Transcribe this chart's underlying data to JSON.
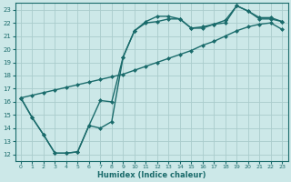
{
  "xlabel": "Humidex (Indice chaleur)",
  "bg_color": "#cce8e8",
  "grid_color": "#aacccc",
  "line_color": "#1a6b6b",
  "markersize": 2.5,
  "linewidth": 1.0,
  "xlim": [
    -0.5,
    23.5
  ],
  "ylim": [
    11.5,
    23.5
  ],
  "xticks": [
    0,
    1,
    2,
    3,
    4,
    5,
    6,
    7,
    8,
    9,
    10,
    11,
    12,
    13,
    14,
    15,
    16,
    17,
    18,
    19,
    20,
    21,
    22,
    23
  ],
  "yticks": [
    12,
    13,
    14,
    15,
    16,
    17,
    18,
    19,
    20,
    21,
    22,
    23
  ],
  "line1_x": [
    0,
    1,
    2,
    3,
    4,
    5,
    6,
    7,
    8,
    9,
    10,
    11,
    12,
    13,
    14,
    15,
    16,
    17,
    18,
    19,
    20,
    21,
    22,
    23
  ],
  "line1_y": [
    16.3,
    14.8,
    13.5,
    12.1,
    12.1,
    12.2,
    14.2,
    14.0,
    14.5,
    19.4,
    21.4,
    22.1,
    22.5,
    22.5,
    22.3,
    21.6,
    21.6,
    21.9,
    22.2,
    23.3,
    22.9,
    22.4,
    22.4,
    22.1
  ],
  "line2_x": [
    0,
    1,
    2,
    3,
    4,
    5,
    6,
    7,
    8,
    9,
    10,
    11,
    12,
    13,
    14,
    15,
    16,
    17,
    18,
    19,
    20,
    21,
    22,
    23
  ],
  "line2_y": [
    16.3,
    14.8,
    13.5,
    12.1,
    12.1,
    12.2,
    14.2,
    16.1,
    16.0,
    19.4,
    21.4,
    22.0,
    22.1,
    22.3,
    22.3,
    21.6,
    21.7,
    21.9,
    22.0,
    23.3,
    22.9,
    22.3,
    22.3,
    22.1
  ],
  "line3_x": [
    0,
    1,
    2,
    3,
    4,
    5,
    6,
    7,
    8,
    9,
    10,
    11,
    12,
    13,
    14,
    15,
    16,
    17,
    18,
    19,
    20,
    21,
    22,
    23
  ],
  "line3_y": [
    16.3,
    16.5,
    16.7,
    16.9,
    17.1,
    17.3,
    17.5,
    17.7,
    17.9,
    18.1,
    18.4,
    18.7,
    19.0,
    19.3,
    19.6,
    19.9,
    20.3,
    20.6,
    21.0,
    21.4,
    21.7,
    21.9,
    22.0,
    21.5
  ]
}
